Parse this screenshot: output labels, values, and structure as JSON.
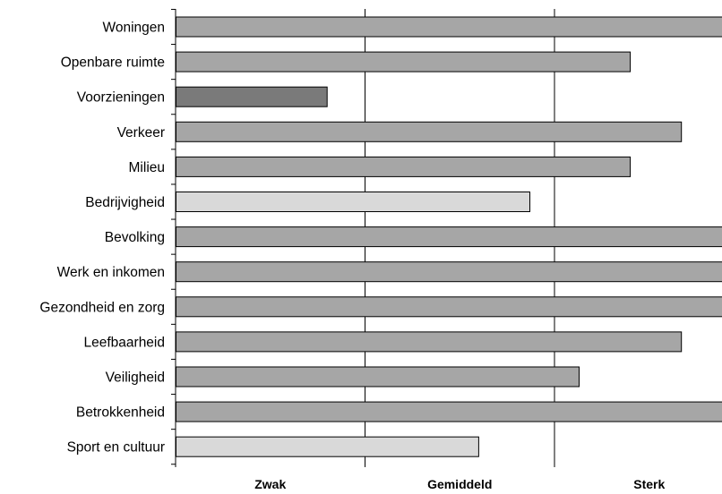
{
  "chart_data": {
    "type": "bar",
    "orientation": "horizontal",
    "title": "",
    "xlabel": "",
    "ylabel": "",
    "xlim": [
      0,
      3
    ],
    "grid": true,
    "legend": "none",
    "x_tick_labels": [
      "Zwak",
      "Gemiddeld",
      "Sterk"
    ],
    "categories": [
      "Woningen",
      "Openbare ruimte",
      "Voorzieningen",
      "Verkeer",
      "Milieu",
      "Bedrijvigheid",
      "Bevolking",
      "Werk en inkomen",
      "Gezondheid en zorg",
      "Leefbaarheid",
      "Veiligheid",
      "Betrokkenheid",
      "Sport en cultuur"
    ],
    "values": [
      2.9,
      2.4,
      0.8,
      2.67,
      2.4,
      1.87,
      2.9,
      2.9,
      2.9,
      2.67,
      2.13,
      2.9,
      1.6
    ],
    "bar_colors": [
      "#a6a6a6",
      "#a6a6a6",
      "#7a7a7a",
      "#a6a6a6",
      "#a6a6a6",
      "#d9d9d9",
      "#a6a6a6",
      "#a6a6a6",
      "#a6a6a6",
      "#a6a6a6",
      "#a6a6a6",
      "#a6a6a6",
      "#d9d9d9"
    ],
    "colors": {
      "bar_default": "#a6a6a6",
      "bar_dark": "#7a7a7a",
      "bar_light": "#d9d9d9",
      "bar_stroke": "#000000",
      "grid": "#000000"
    }
  }
}
